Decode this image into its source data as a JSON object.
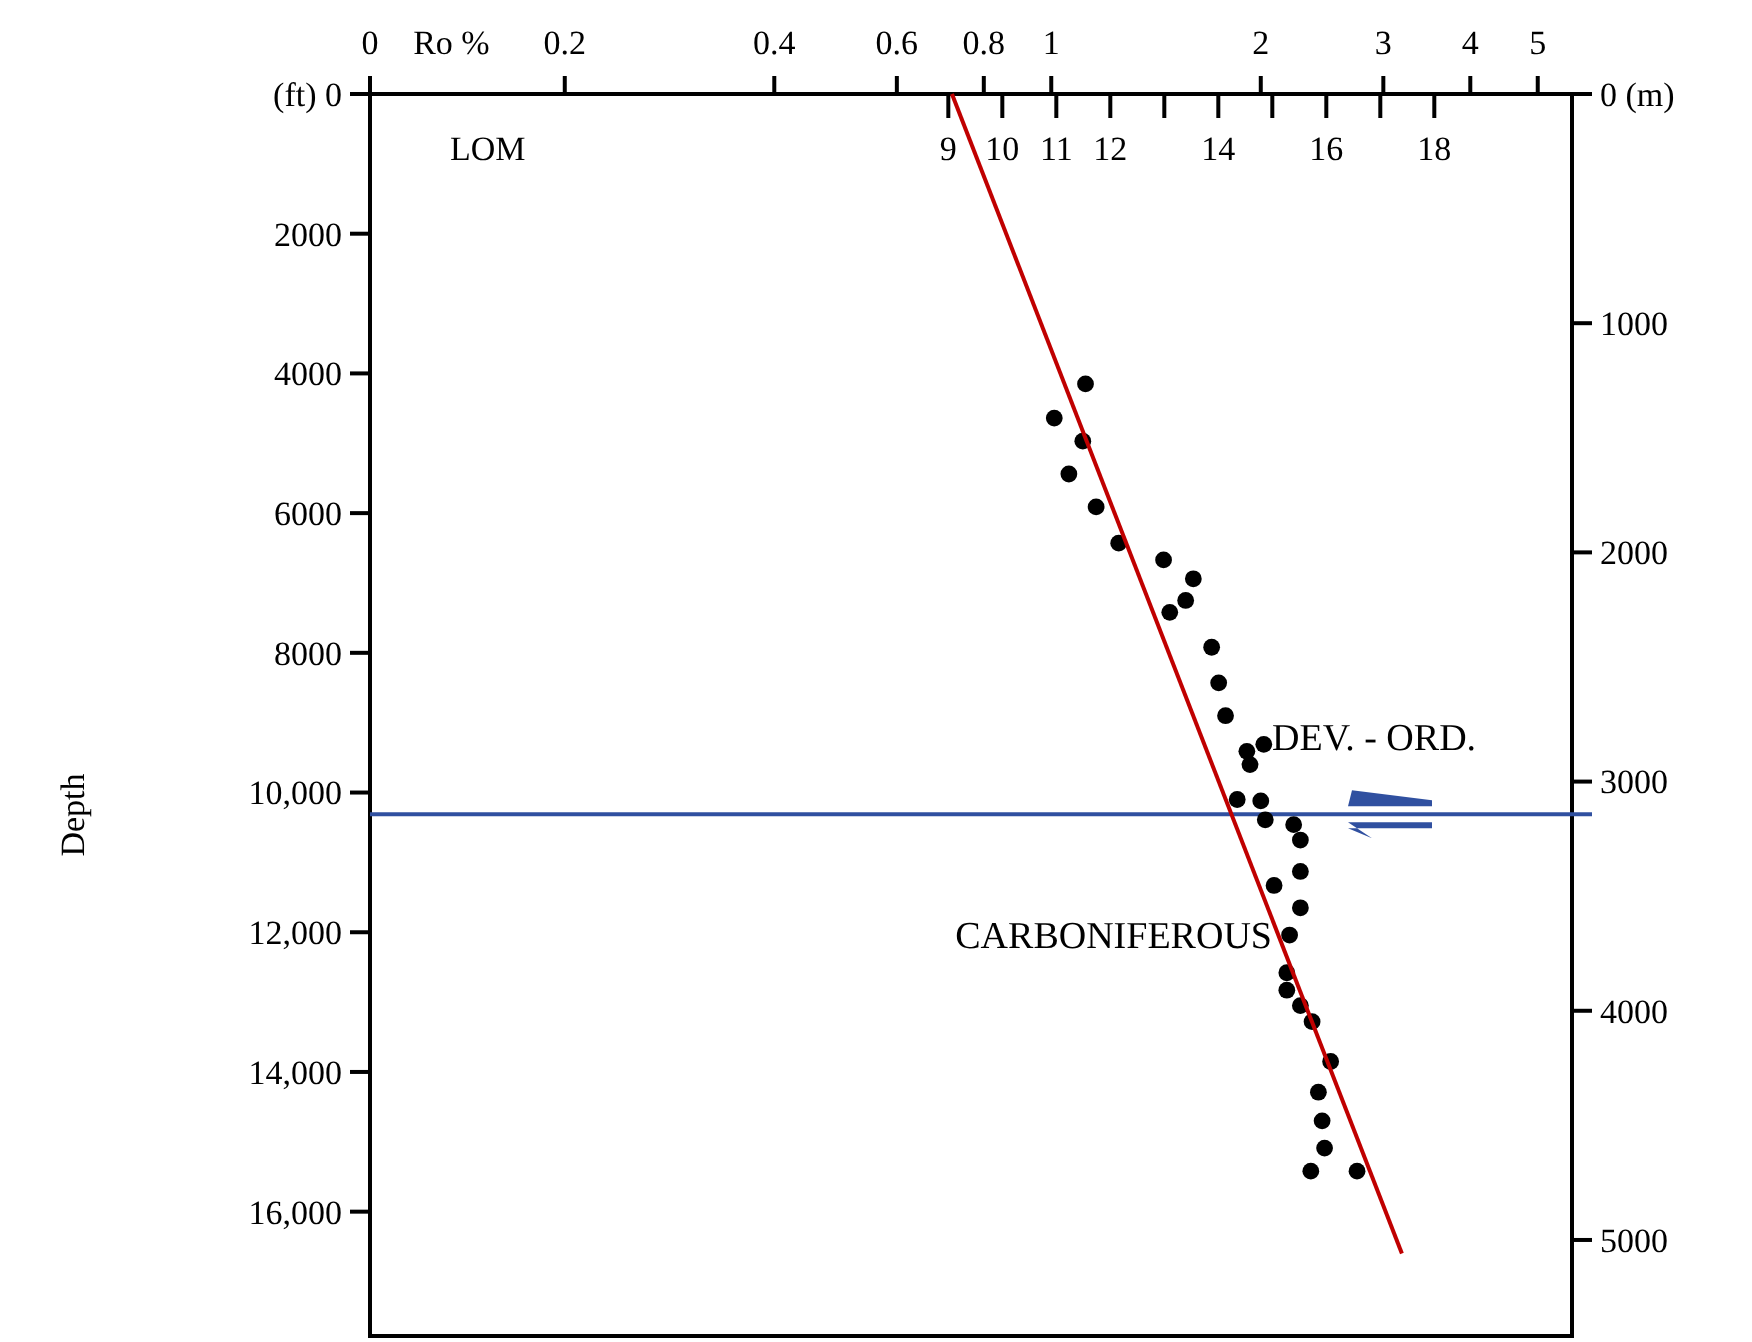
{
  "chart_data": {
    "type": "scatter",
    "xlabel": "Ro %",
    "x2label": "LOM",
    "ylabel": "Depth",
    "log": "x",
    "xlim": [
      0.105,
      5.6
    ],
    "x2lim": [
      -1.71,
      20.55
    ],
    "ylim": [
      17780,
      0
    ],
    "y2lim": [
      5419,
      0
    ],
    "xticks": [
      {
        "value": 0.105,
        "label": "0"
      },
      0.2,
      0.4,
      0.6,
      0.8,
      1,
      2,
      3,
      4,
      5
    ],
    "x2ticks": [
      9,
      10,
      11,
      12,
      {
        "value": 13,
        "label": null
      },
      14,
      {
        "value": 15,
        "label": null
      },
      16,
      {
        "value": 17,
        "label": null
      },
      18
    ],
    "yticks": [
      {
        "value": 0,
        "label": "(ft) 0"
      },
      2000,
      4000,
      6000,
      8000,
      {
        "value": 10000,
        "label": "10,000"
      },
      {
        "value": 12000,
        "label": "12,000"
      },
      {
        "value": 14000,
        "label": "14,000"
      },
      {
        "value": 16000,
        "label": "16,000"
      }
    ],
    "y2ticks": [
      {
        "value": 0,
        "label": "0 (m)"
      },
      1000,
      2000,
      3000,
      4000,
      5000
    ],
    "grid": false,
    "marker": "circle",
    "series": [
      {
        "color": "#000000",
        "x": [
          1.12,
          1.01,
          1.11,
          1.06,
          1.16,
          1.25,
          1.45,
          1.6,
          1.56,
          1.48,
          1.7,
          1.74,
          1.78,
          1.91,
          2.02,
          1.93,
          1.85,
          2.0,
          2.03,
          2.23,
          2.28,
          2.28,
          2.09,
          2.28,
          2.2,
          2.18,
          2.18,
          2.28,
          2.37,
          2.52,
          2.42,
          2.45,
          2.47,
          2.36,
          2.75
        ],
        "values": [
          4150,
          4640,
          4970,
          5440,
          5910,
          6430,
          6670,
          6940,
          7250,
          7420,
          7920,
          8430,
          8900,
          9410,
          9310,
          9600,
          10100,
          10120,
          10390,
          10460,
          10680,
          11130,
          11330,
          11650,
          12040,
          12580,
          12830,
          13050,
          13280,
          13850,
          14290,
          14700,
          15090,
          15420,
          15420
        ]
      },
      {
        "type": "line",
        "color": "#c00000",
        "line_style": "solid",
        "marker": "none",
        "x": [
          0.72,
          3.19
        ],
        "values": [
          0,
          16600
        ]
      }
    ],
    "ref_lines": [
      {
        "axis": "y",
        "value": 10310,
        "color": "#3050a0"
      }
    ],
    "annotations": [
      "DEV. - ORD.",
      "CARBONIFEROUS"
    ]
  }
}
